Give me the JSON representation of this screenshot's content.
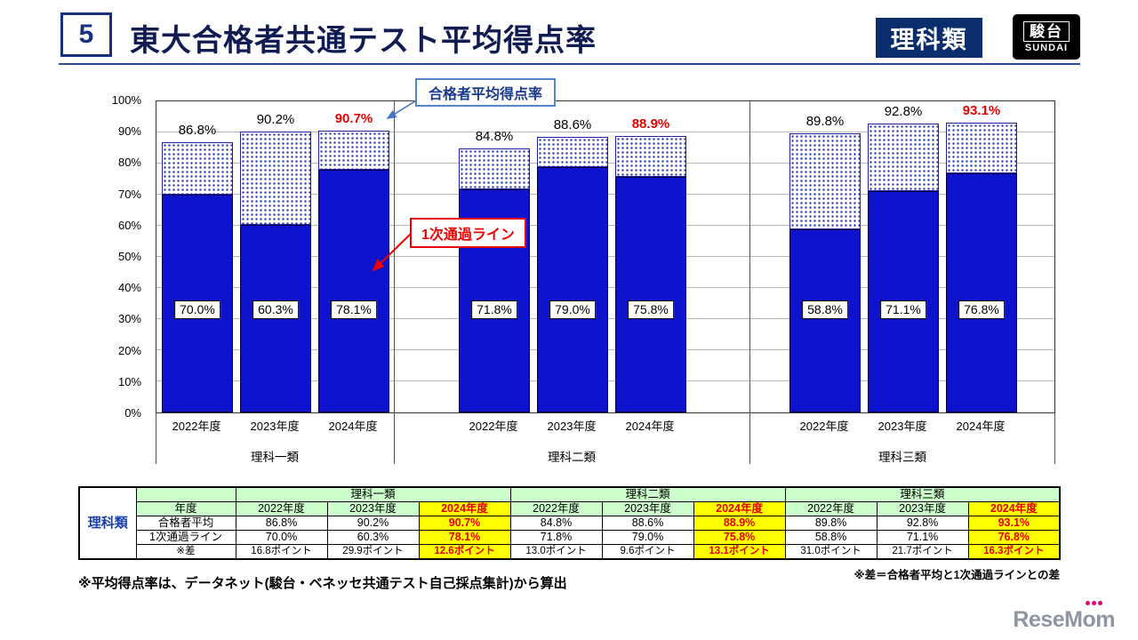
{
  "header": {
    "slide_number": "5",
    "title": "東大合格者共通テスト平均得点率",
    "badge": "理科類",
    "logo_kanji": "駿台",
    "logo_roman": "SUNDAI"
  },
  "chart_data": {
    "type": "bar",
    "stacked": true,
    "title": "東大合格者共通テスト平均得点率",
    "ylabel": "",
    "ylim": [
      0,
      100
    ],
    "ytick_step": 10,
    "grid": true,
    "legend": {
      "average_label": "合格者平均得点率",
      "pass_line_label": "1次通過ライン"
    },
    "groups": [
      {
        "label": "理科一類",
        "years": [
          "2022年度",
          "2023年度",
          "2024年度"
        ],
        "average": [
          86.8,
          90.2,
          90.7
        ],
        "pass_line": [
          70.0,
          60.3,
          78.1
        ],
        "highlight_index": 2
      },
      {
        "label": "理科二類",
        "years": [
          "2022年度",
          "2023年度",
          "2024年度"
        ],
        "average": [
          84.8,
          88.6,
          88.9
        ],
        "pass_line": [
          71.8,
          79.0,
          75.8
        ],
        "highlight_index": 2
      },
      {
        "label": "理科三類",
        "years": [
          "2022年度",
          "2023年度",
          "2024年度"
        ],
        "average": [
          89.8,
          92.8,
          93.1
        ],
        "pass_line": [
          58.8,
          71.1,
          76.8
        ],
        "highlight_index": 2
      }
    ]
  },
  "table": {
    "row_label": "理科類",
    "group_headers": [
      "理科一類",
      "理科二類",
      "理科三類"
    ],
    "rows": [
      {
        "header": "年度",
        "cells": [
          "2022年度",
          "2023年度",
          "2024年度",
          "2022年度",
          "2023年度",
          "2024年度",
          "2022年度",
          "2023年度",
          "2024年度"
        ]
      },
      {
        "header": "合格者平均",
        "cells": [
          "86.8%",
          "90.2%",
          "90.7%",
          "84.8%",
          "88.6%",
          "88.9%",
          "89.8%",
          "92.8%",
          "93.1%"
        ]
      },
      {
        "header": "1次通過ライン",
        "cells": [
          "70.0%",
          "60.3%",
          "78.1%",
          "71.8%",
          "79.0%",
          "75.8%",
          "58.8%",
          "71.1%",
          "76.8%"
        ]
      },
      {
        "header": "※差",
        "cells": [
          "16.8ポイント",
          "29.9ポイント",
          "12.6ポイント",
          "13.0ポイント",
          "9.6ポイント",
          "13.1ポイント",
          "31.0ポイント",
          "21.7ポイント",
          "16.3ポイント"
        ]
      }
    ]
  },
  "footnotes": {
    "left": "※平均得点率は、データネット(駿台・ベネッセ共通テスト自己採点集計)から算出",
    "right": "※差＝合格者平均と1次通過ラインとの差"
  },
  "footer_logo": "ReseMom",
  "colors": {
    "bar_blue": "#0d13cc",
    "dot_blue": "#2635b5",
    "highlight_red": "#e60000",
    "title_navy": "#101c52",
    "badge_navy": "#0a2d6e",
    "table_green": "#ccffcc",
    "table_yellow": "#ffff00",
    "category_blue": "#1a3fae"
  }
}
